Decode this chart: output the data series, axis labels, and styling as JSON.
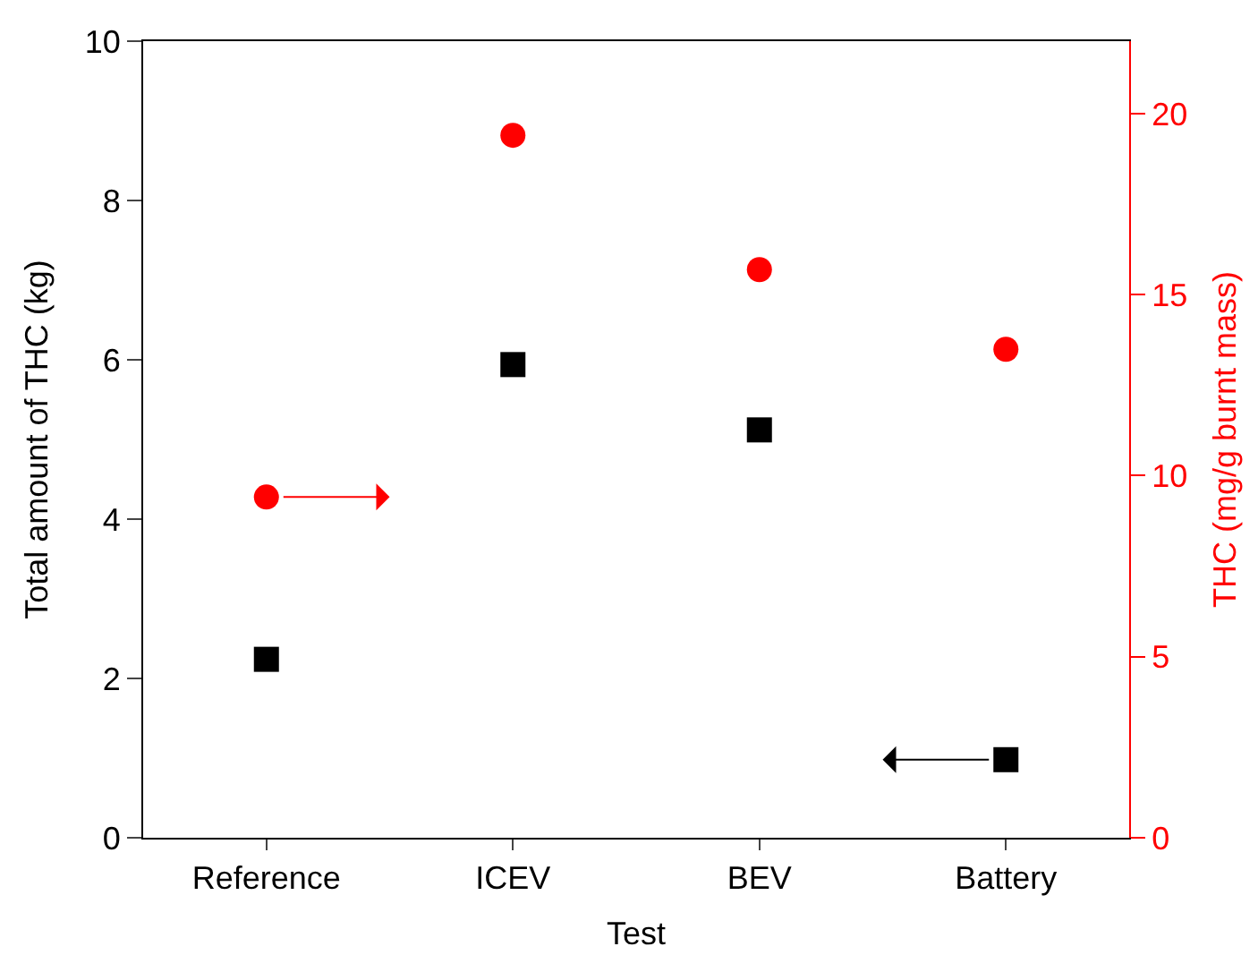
{
  "chart_data": {
    "type": "scatter",
    "xlabel": "Test",
    "ylabel": "Total amount of THC (kg)",
    "y2label": "THC (mg/g burnt mass)",
    "categories": [
      "Reference",
      "ICEV",
      "BEV",
      "Battery"
    ],
    "series": [
      {
        "color": "#000000",
        "marker": "square",
        "values": [
          2.24,
          5.94,
          5.12,
          0.98
        ]
      },
      {
        "color": "#ff0000",
        "marker": "circle",
        "axis": "y2",
        "values": [
          9.41,
          19.4,
          15.69,
          13.49
        ]
      }
    ],
    "ylim": [
      0,
      10
    ],
    "yticks": [
      0,
      2,
      4,
      6,
      8,
      10
    ],
    "y2lim": [
      0,
      22
    ],
    "y2ticks": [
      0,
      5,
      10,
      15,
      20
    ]
  }
}
